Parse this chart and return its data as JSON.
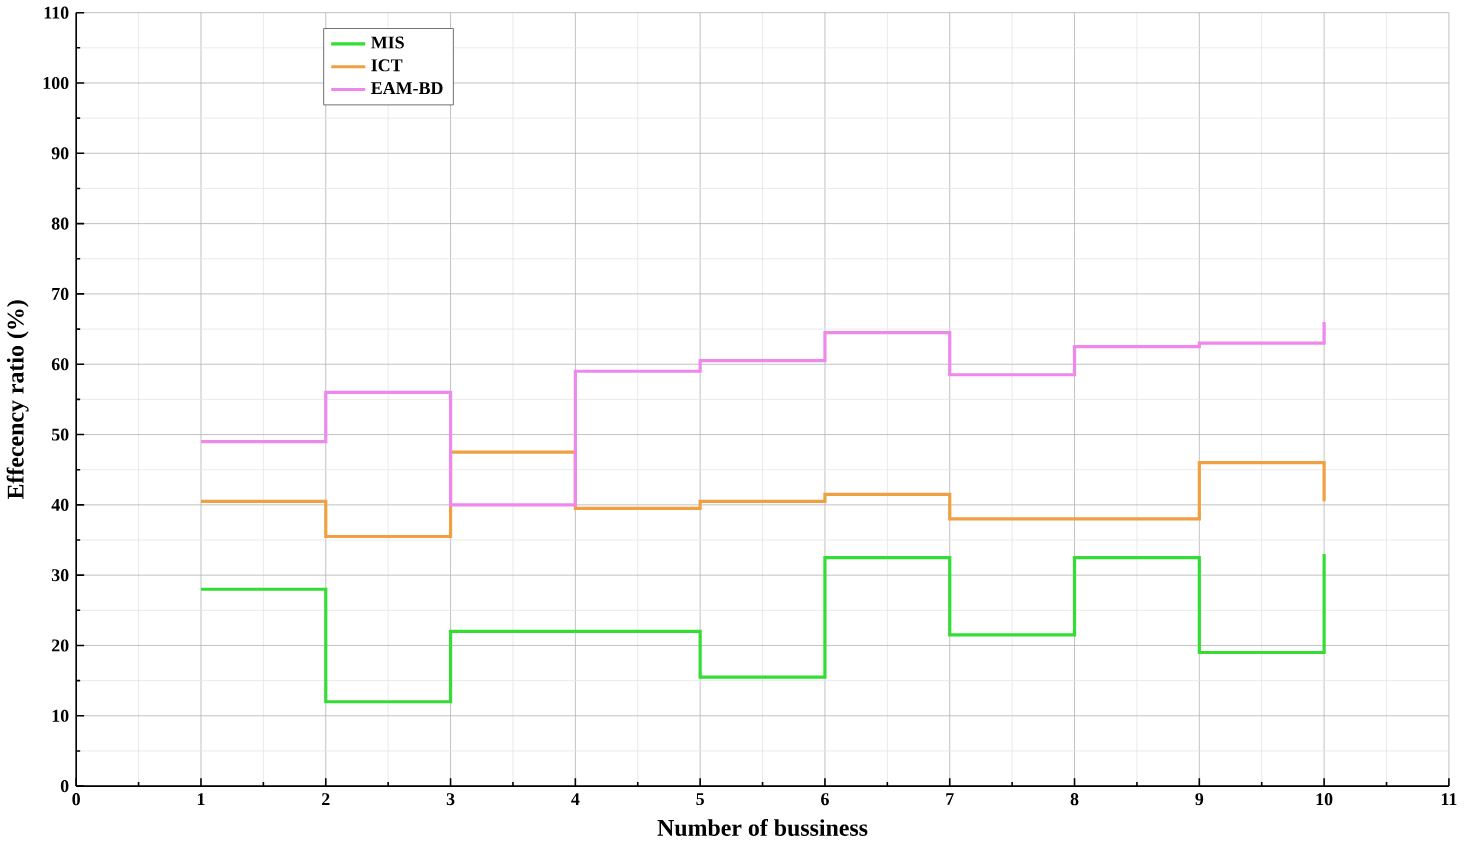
{
  "chart_data": {
    "type": "step",
    "xlabel": "Number of bussiness",
    "ylabel": "Effecency ratio (%)",
    "x": [
      1,
      2,
      3,
      4,
      5,
      6,
      7,
      8,
      9,
      10
    ],
    "series": [
      {
        "name": "MIS",
        "color": "#33dd33",
        "values": [
          28,
          12,
          22,
          22,
          15.5,
          32.5,
          21.5,
          32.5,
          19,
          33
        ]
      },
      {
        "name": "ICT",
        "color": "#f0a040",
        "values": [
          40.5,
          35.5,
          47.5,
          39.5,
          40.5,
          41.5,
          38,
          38,
          46,
          40.5
        ]
      },
      {
        "name": "EAM-BD",
        "color": "#ee88ee",
        "values": [
          49,
          56,
          40,
          59,
          60.5,
          64.5,
          58.5,
          62.5,
          63,
          66
        ]
      }
    ],
    "xlim": [
      0,
      11
    ],
    "xticks": [
      0,
      1,
      2,
      3,
      4,
      5,
      6,
      7,
      8,
      9,
      10,
      11
    ],
    "ylim": [
      0,
      110
    ],
    "yticks": [
      0,
      10,
      20,
      30,
      40,
      50,
      60,
      70,
      80,
      90,
      100,
      110
    ],
    "grid": true,
    "legend": "top left"
  }
}
